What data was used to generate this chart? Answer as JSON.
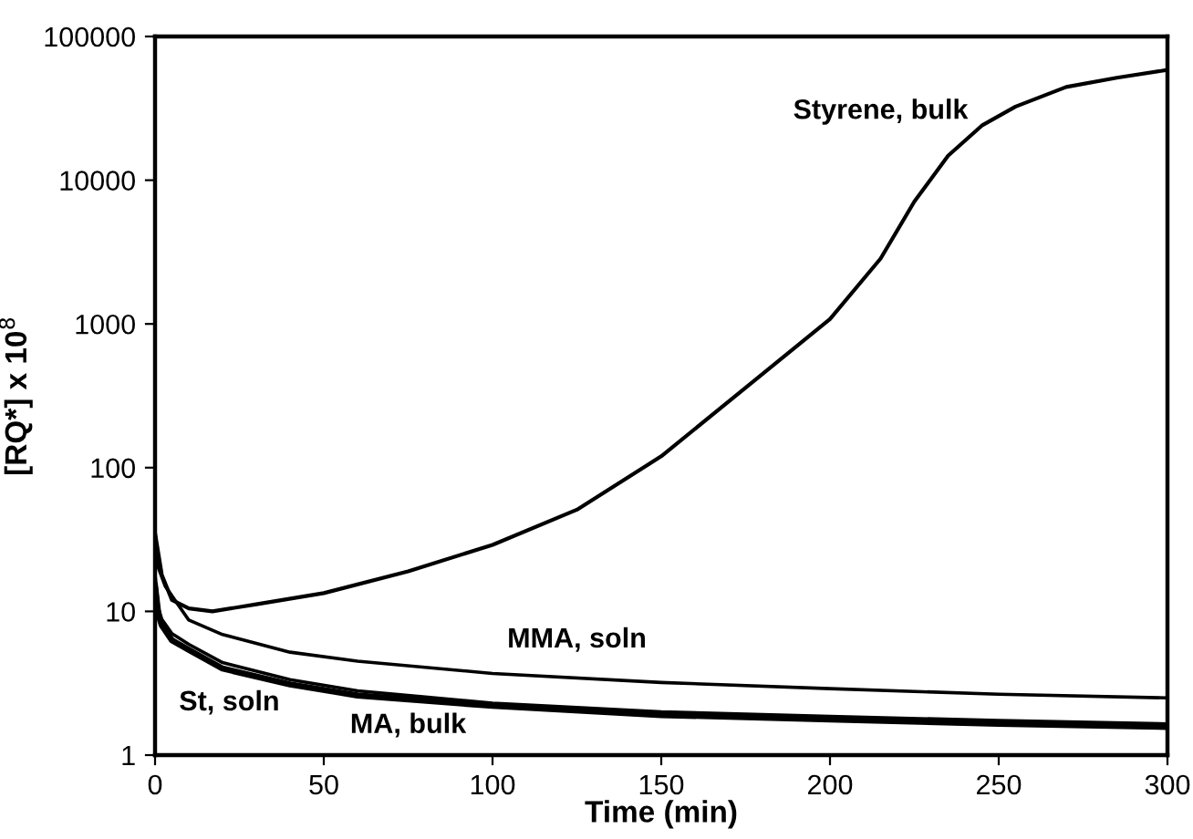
{
  "chart_data": {
    "type": "line",
    "xlabel": "Time (min)",
    "ylabel": "[RQ*] x 10$^{8}$",
    "log": "y",
    "xlim": [
      0,
      300
    ],
    "xticks": [
      0,
      50,
      100,
      150,
      200,
      250,
      300
    ],
    "ylim": [
      1,
      100000
    ],
    "yticks": [
      1,
      10,
      100,
      1000,
      10000,
      100000
    ],
    "grid": false,
    "marker": "none",
    "line_style": "solid",
    "series": [
      {
        "name": "Styrene, bulk",
        "color": "#000000",
        "x": [
          0,
          2,
          5,
          10,
          17,
          30,
          50,
          75,
          100,
          125,
          150,
          175,
          200,
          215,
          225,
          235,
          245,
          255,
          270,
          285,
          300
        ],
        "values": [
          35,
          18,
          12,
          10.5,
          10,
          11.2,
          13.4,
          19,
          29,
          51,
          120,
          360,
          1080,
          2850,
          7100,
          14800,
          24000,
          32500,
          44500,
          51600,
          58500
        ]
      },
      {
        "name": "MMA, soln",
        "color": "#000000",
        "x": [
          0,
          1,
          3,
          10,
          20,
          40,
          60,
          100,
          150,
          200,
          250,
          300
        ],
        "values": [
          35,
          20,
          15,
          8.7,
          6.9,
          5.2,
          4.5,
          3.7,
          3.2,
          2.9,
          2.65,
          2.5
        ]
      },
      {
        "name": "St, soln",
        "color": "#000000",
        "x": [
          0,
          1,
          2,
          5,
          10,
          20,
          40,
          60,
          100,
          150,
          200,
          250,
          300
        ],
        "values": [
          18,
          10.5,
          8.8,
          7,
          5.9,
          4.4,
          3.35,
          2.8,
          2.3,
          2.0,
          1.86,
          1.74,
          1.65
        ]
      },
      {
        "name": "MA, bulk",
        "color": "#000000",
        "x": [
          0,
          1,
          2,
          5,
          10,
          20,
          40,
          60,
          100,
          150,
          200,
          250,
          300
        ],
        "values": [
          15,
          9.5,
          8,
          6.3,
          5.4,
          4.0,
          3.1,
          2.6,
          2.2,
          1.9,
          1.77,
          1.65,
          1.57
        ]
      }
    ]
  }
}
